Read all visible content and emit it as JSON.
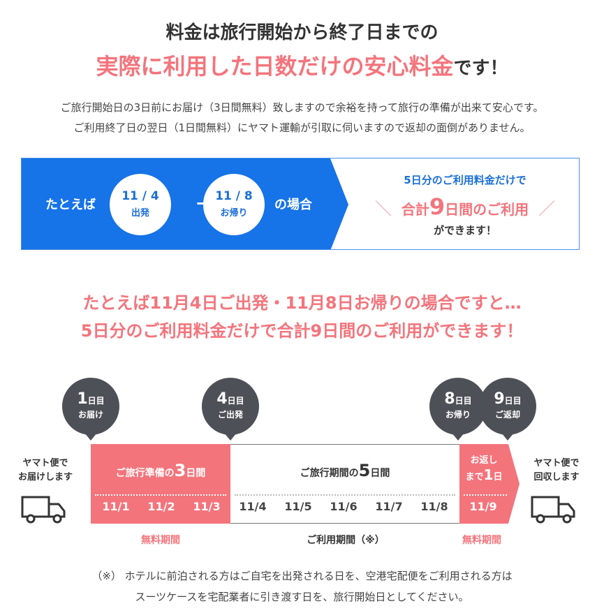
{
  "header": {
    "line1": "料金は旅行開始から終了日までの",
    "line2_highlight": "実際に利用した日数だけの安心料金",
    "line2_suffix": "です！"
  },
  "intro": {
    "line1": "ご旅行開始日の3日前にお届け（3日間無料）致しますので余裕を持って旅行の準備が出来て安心です。",
    "line2": "ご利用終了日の翌日（1日間無料）にヤマト運輸が引取に伺いますので返却の面倒がありません。"
  },
  "example": {
    "prefix": "たとえば",
    "start_date": "11 / 4",
    "start_label": "出発",
    "arrow": "→",
    "end_date": "11 / 8",
    "end_label": "お帰り",
    "suffix": "の場合",
    "right_line1": "5日分のご利用料金だけで",
    "right_line2_pre": "合計",
    "right_line2_num": "9",
    "right_line2_post": "日間のご利用",
    "slash_left": "＼",
    "slash_right": "／",
    "right_line3": "ができます！"
  },
  "headline": {
    "line1": "たとえば11月4日ご出発・11月8日お帰りの場合ですと…",
    "line2": "5日分のご利用料金だけで合計9日間のご利用ができます！"
  },
  "timeline": {
    "bubbles": [
      {
        "num": "1",
        "unit": "日目",
        "label": "お届け"
      },
      {
        "num": "4",
        "unit": "日目",
        "label": "ご出発"
      },
      {
        "num": "8",
        "unit": "日目",
        "label": "お帰り"
      },
      {
        "num": "9",
        "unit": "日目",
        "label": "ご返却"
      }
    ],
    "left_label_1": "ヤマト便で",
    "left_label_2": "お届けします",
    "right_label_1": "ヤマト便で",
    "right_label_2": "回収します",
    "prep_pre": "ご旅行準備の",
    "prep_num": "3",
    "prep_post": "日間",
    "trip_pre": "ご旅行期間の",
    "trip_num": "5",
    "trip_post": "日間",
    "return_line1": "お返し",
    "return_pre": "まで",
    "return_num": "1",
    "return_post": "日",
    "days": [
      "11/1",
      "11/2",
      "11/3",
      "11/4",
      "11/5",
      "11/6",
      "11/7",
      "11/8",
      "11/9"
    ],
    "free_left": "無料期間",
    "use_period": "ご利用期間（※）",
    "free_right": "無料期間"
  },
  "footnote": {
    "line1": "（※） ホテルに前泊される方はご自宅を出発される日を、空港宅配便をご利用される方は",
    "line2": "スーツケースを宅配業者に引き渡す日を、旅行開始日としてください。"
  },
  "colors": {
    "pink": "#f4747c",
    "blue": "#1673e8",
    "dark_bubble": "#4e5057"
  }
}
